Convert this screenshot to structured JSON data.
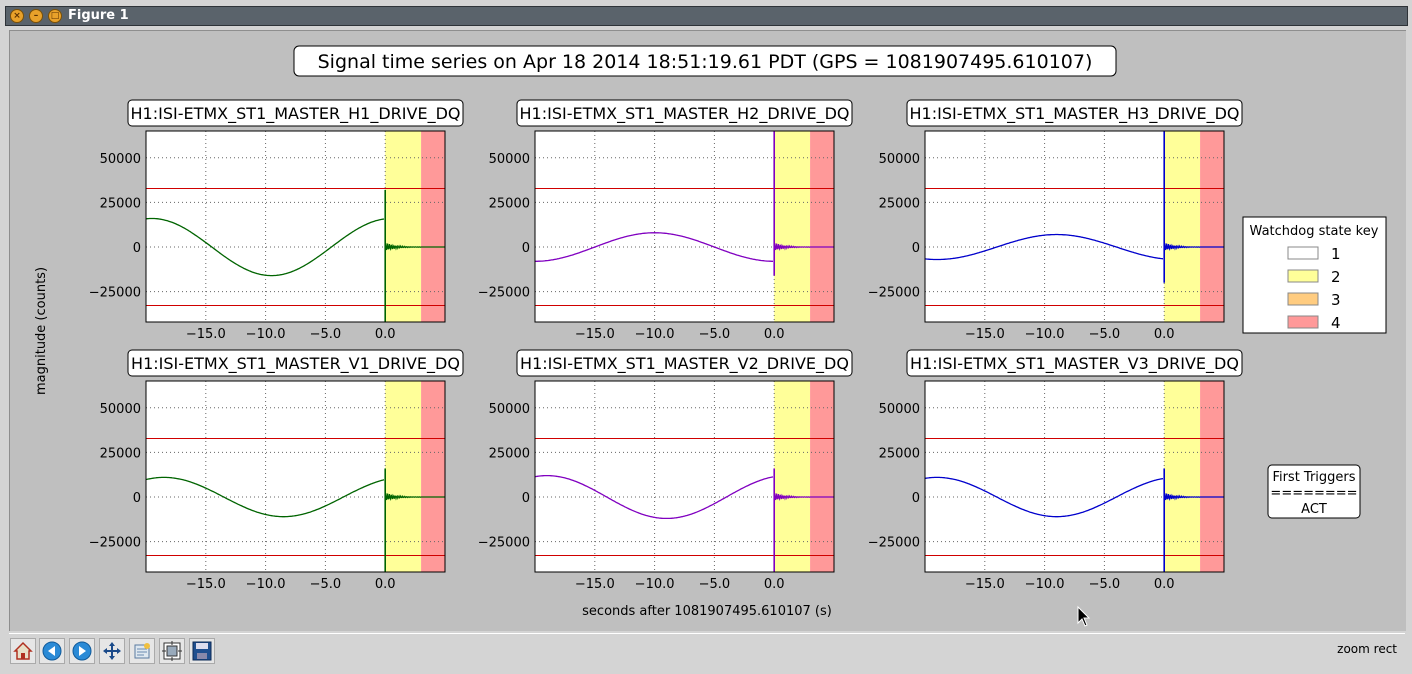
{
  "window": {
    "title": "Figure 1"
  },
  "figure": {
    "suptitle": "Signal time series on Apr 18 2014 18:51:19.61 PDT (GPS = 1081907495.610107)",
    "ylabel": "magnitude (counts)",
    "xlabel": "seconds after 1081907495.610107 (s)"
  },
  "legend": {
    "title": "Watchdog state key",
    "entries": [
      {
        "label": "1",
        "color": "#ffffff"
      },
      {
        "label": "2",
        "color": "#ffff99"
      },
      {
        "label": "3",
        "color": "#ffcc80"
      },
      {
        "label": "4",
        "color": "#ff9999"
      }
    ]
  },
  "triggers": {
    "line1": "First Triggers",
    "line2": "========",
    "line3": "ACT"
  },
  "statusbar": {
    "mode": "zoom rect",
    "tools": [
      "home-icon",
      "back-icon",
      "forward-icon",
      "pan-icon",
      "zoom-icon",
      "subplots-icon",
      "save-icon"
    ]
  },
  "chart_data": [
    {
      "type": "line",
      "title": "H1:ISI-ETMX_ST1_MASTER_H1_DRIVE_DQ",
      "color": "#006400",
      "amp": 16000,
      "offset": 0,
      "period": 20,
      "phase": -4.5,
      "spike_hi": 32000,
      "spike_lo": -42000,
      "ylim": [
        -42000,
        65000
      ],
      "xlim": [
        -20,
        5
      ],
      "yticks": [
        -25000,
        0,
        25000,
        50000
      ],
      "yticklabels": [
        "−25000",
        "0",
        "25000",
        "50000"
      ],
      "xticks": [
        -15,
        -10,
        -5,
        0
      ],
      "xticklabels": [
        "−15.0",
        "−10.0",
        "−5.0",
        "0.0"
      ],
      "thresholds": [
        32768,
        -32768
      ],
      "state2_range": [
        0,
        3
      ],
      "state4_range": [
        3,
        5
      ]
    },
    {
      "type": "line",
      "title": "H1:ISI-ETMX_ST1_MASTER_H2_DRIVE_DQ",
      "color": "#8000c0",
      "amp": 8000,
      "offset": 0,
      "period": 20,
      "phase": 5,
      "spike_hi": 65000,
      "spike_lo": -16000,
      "ylim": [
        -42000,
        65000
      ],
      "xlim": [
        -20,
        5
      ],
      "yticks": [
        -25000,
        0,
        25000,
        50000
      ],
      "yticklabels": [
        "−25000",
        "0",
        "25000",
        "50000"
      ],
      "xticks": [
        -15,
        -10,
        -5,
        0
      ],
      "xticklabels": [
        "−15.0",
        "−10.0",
        "−5.0",
        "0.0"
      ],
      "thresholds": [
        32768,
        -32768
      ],
      "state2_range": [
        0,
        3
      ],
      "state4_range": [
        3,
        5
      ]
    },
    {
      "type": "line",
      "title": "H1:ISI-ETMX_ST1_MASTER_H3_DRIVE_DQ",
      "color": "#0000cc",
      "amp": 7000,
      "offset": 0,
      "period": 20,
      "phase": 6,
      "spike_hi": 65000,
      "spike_lo": -20000,
      "ylim": [
        -42000,
        65000
      ],
      "xlim": [
        -20,
        5
      ],
      "yticks": [
        -25000,
        0,
        25000,
        50000
      ],
      "yticklabels": [
        "−25000",
        "0",
        "25000",
        "50000"
      ],
      "xticks": [
        -15,
        -10,
        -5,
        0
      ],
      "xticklabels": [
        "−15.0",
        "−10.0",
        "−5.0",
        "0.0"
      ],
      "thresholds": [
        32768,
        -32768
      ],
      "state2_range": [
        0,
        3
      ],
      "state4_range": [
        3,
        5
      ]
    },
    {
      "type": "line",
      "title": "H1:ISI-ETMX_ST1_MASTER_V1_DRIVE_DQ",
      "color": "#006400",
      "amp": 11000,
      "offset": 0,
      "period": 20,
      "phase": -3.5,
      "spike_hi": 16000,
      "spike_lo": -42000,
      "ylim": [
        -42000,
        65000
      ],
      "xlim": [
        -20,
        5
      ],
      "yticks": [
        -25000,
        0,
        25000,
        50000
      ],
      "yticklabels": [
        "−25000",
        "0",
        "25000",
        "50000"
      ],
      "xticks": [
        -15,
        -10,
        -5,
        0
      ],
      "xticklabels": [
        "−15.0",
        "−10.0",
        "−5.0",
        "0.0"
      ],
      "thresholds": [
        32768,
        -32768
      ],
      "state2_range": [
        0,
        3
      ],
      "state4_range": [
        3,
        5
      ]
    },
    {
      "type": "line",
      "title": "H1:ISI-ETMX_ST1_MASTER_V2_DRIVE_DQ",
      "color": "#8000c0",
      "amp": 12000,
      "offset": 0,
      "period": 20,
      "phase": -4,
      "spike_hi": 16000,
      "spike_lo": -42000,
      "ylim": [
        -42000,
        65000
      ],
      "xlim": [
        -20,
        5
      ],
      "yticks": [
        -25000,
        0,
        25000,
        50000
      ],
      "yticklabels": [
        "−25000",
        "0",
        "25000",
        "50000"
      ],
      "xticks": [
        -15,
        -10,
        -5,
        0
      ],
      "xticklabels": [
        "−15.0",
        "−10.0",
        "−5.0",
        "0.0"
      ],
      "thresholds": [
        32768,
        -32768
      ],
      "state2_range": [
        0,
        3
      ],
      "state4_range": [
        3,
        5
      ]
    },
    {
      "type": "line",
      "title": "H1:ISI-ETMX_ST1_MASTER_V3_DRIVE_DQ",
      "color": "#0000cc",
      "amp": 11000,
      "offset": 0,
      "period": 20,
      "phase": -4,
      "spike_hi": 16000,
      "spike_lo": -42000,
      "ylim": [
        -42000,
        65000
      ],
      "xlim": [
        -20,
        5
      ],
      "yticks": [
        -25000,
        0,
        25000,
        50000
      ],
      "yticklabels": [
        "−25000",
        "0",
        "25000",
        "50000"
      ],
      "xticks": [
        -15,
        -10,
        -5,
        0
      ],
      "xticklabels": [
        "−15.0",
        "−10.0",
        "−5.0",
        "0.0"
      ],
      "thresholds": [
        32768,
        -32768
      ],
      "state2_range": [
        0,
        3
      ],
      "state4_range": [
        3,
        5
      ]
    }
  ]
}
